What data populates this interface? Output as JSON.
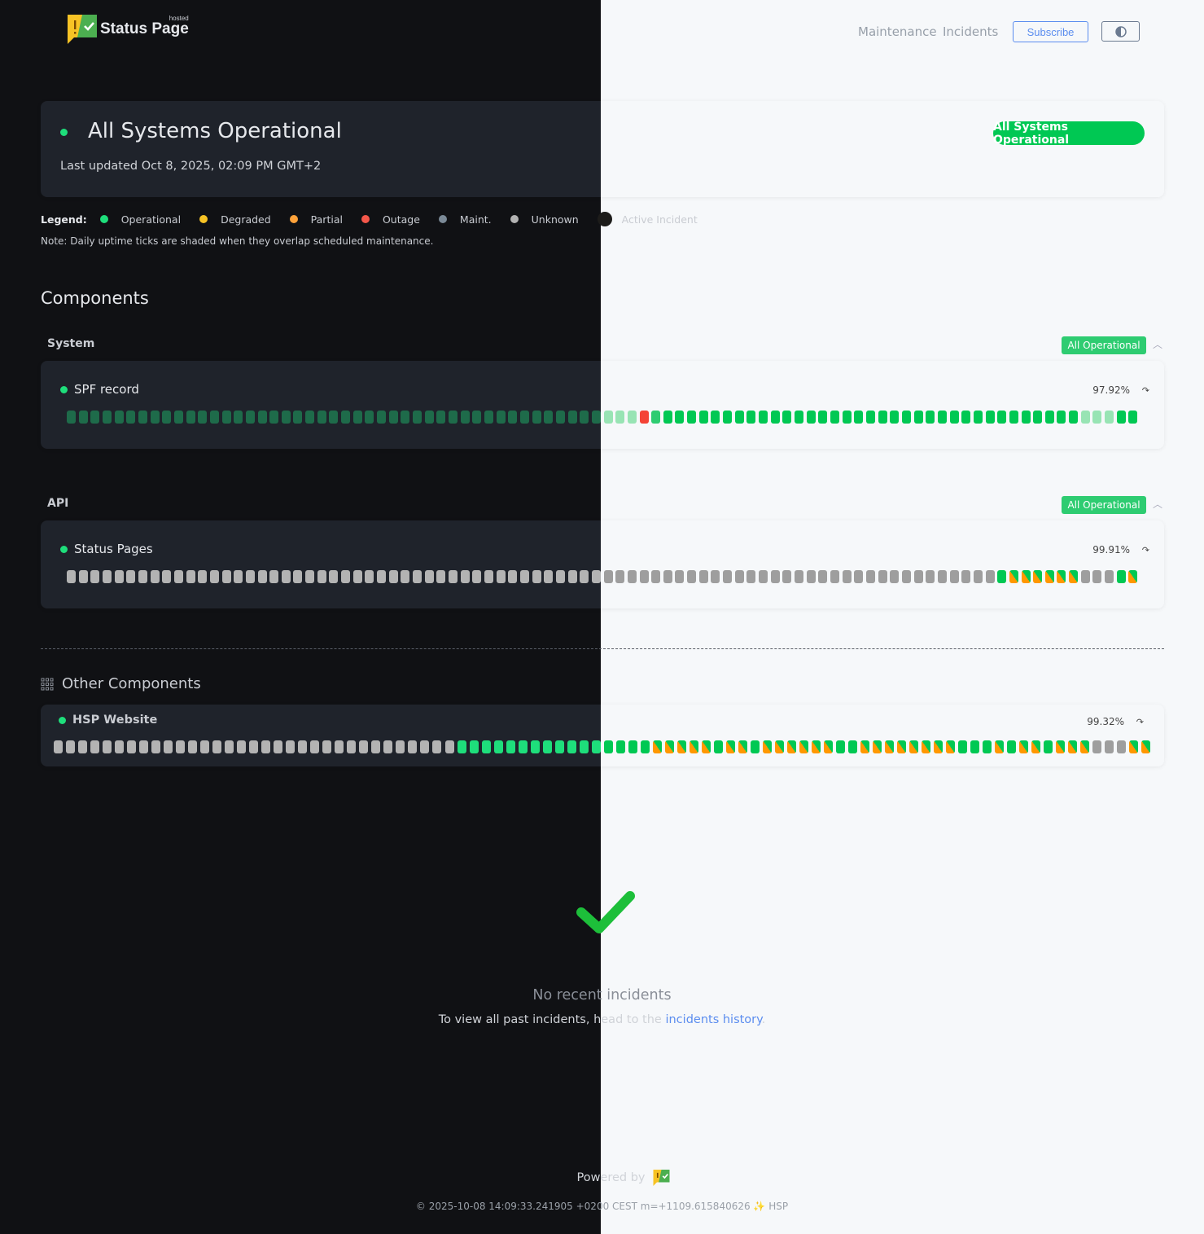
{
  "header": {
    "logo_text": "Status Page",
    "logo_hosted": "hosted",
    "nav": {
      "maintenance": "Maintenance",
      "incidents": "Incidents",
      "subscribe": "Subscribe"
    },
    "theme_toggle_icon": "half-circle-contrast-icon"
  },
  "summary": {
    "title": "All Systems Operational",
    "last_updated": "Last updated Oct 8, 2025, 02:09 PM GMT+2",
    "badge": "All Systems Operational"
  },
  "legend": {
    "label": "Legend:",
    "items": [
      {
        "label": "Operational",
        "color": "#1ede7b"
      },
      {
        "label": "Degraded",
        "color": "#f7c325"
      },
      {
        "label": "Partial",
        "color": "#ffa23a"
      },
      {
        "label": "Outage",
        "color": "#f4574a"
      },
      {
        "label": "Maint.",
        "color": "#7b8a97"
      },
      {
        "label": "Unknown",
        "color": "#b3b3b3"
      },
      {
        "label": "Active Incident",
        "color": "#1d1c1a"
      }
    ],
    "note": "Note: Daily uptime ticks are shaded when they overlap scheduled maintenance."
  },
  "components_title": "Components",
  "groups": [
    {
      "name": "System",
      "badge": "All Operational",
      "components": [
        {
          "name": "SPF record",
          "uptime": "97.92%",
          "ticks": [
            [
              "dim",
              45
            ],
            [
              "pale",
              3
            ],
            [
              "outage",
              1
            ],
            [
              "op-light",
              1
            ],
            [
              "op",
              35
            ],
            [
              "pale",
              3
            ],
            [
              "op",
              2
            ]
          ]
        }
      ]
    },
    {
      "name": "API",
      "badge": "All Operational",
      "components": [
        {
          "name": "Status Pages",
          "uptime": "99.91%",
          "ticks": [
            [
              "unknown",
              78
            ],
            [
              "op",
              1
            ],
            [
              "maint-split",
              6
            ],
            [
              "unknown",
              3
            ],
            [
              "op",
              1
            ],
            [
              "maint-split",
              1
            ]
          ]
        }
      ]
    }
  ],
  "other": {
    "title": "Other Components",
    "components": [
      {
        "name": "HSP Website",
        "uptime": "99.32%",
        "ticks": [
          [
            "unknown",
            33
          ],
          [
            "op",
            16
          ],
          [
            "maint-split",
            5
          ],
          [
            "op",
            1
          ],
          [
            "maint-split",
            2
          ],
          [
            "op",
            1
          ],
          [
            "maint-split",
            6
          ],
          [
            "op",
            2
          ],
          [
            "maint-split",
            8
          ],
          [
            "op",
            3
          ],
          [
            "maint-split",
            1
          ],
          [
            "op",
            1
          ],
          [
            "maint-split",
            2
          ],
          [
            "op",
            1
          ],
          [
            "maint-split",
            3
          ],
          [
            "unknown",
            3
          ],
          [
            "maint-split",
            2
          ]
        ]
      }
    ]
  },
  "incidents": {
    "title": "No recent incidents",
    "text": "To view all past incidents, head to the ",
    "link": "incidents history",
    "end": "."
  },
  "footer": {
    "powered": "Powered by",
    "build": "© 2025-10-08 14:09:33.241905 +0200 CEST m=+1109.615840626 ✨ HSP"
  }
}
